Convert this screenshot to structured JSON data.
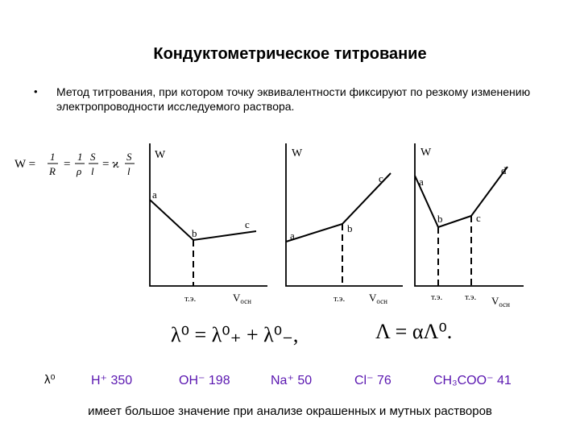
{
  "title": "Кондуктометрическое титрование",
  "bullet": "•",
  "description": "Метод титрования, при котором точку эквивалентности фиксируют по резкому изменению электропроводности исследуемого раствора.",
  "formula": {
    "lhs": "W =",
    "f1_num": "1",
    "f1_den": "R",
    "eq1": "=",
    "f2_num": "1",
    "f2_den": "ρ",
    "f3_num": "S",
    "f3_den": "l",
    "eq2": "= ϰ",
    "f4_num": "S",
    "f4_den": "l"
  },
  "graphs": [
    {
      "y_axis": "W",
      "x_axis": "V",
      "x_axis_sub": "осн",
      "eq_point": "т.э.",
      "points": [
        "a",
        "b",
        "c"
      ]
    },
    {
      "y_axis": "W",
      "x_axis": "V",
      "x_axis_sub": "осн",
      "eq_point": "т.э.",
      "points": [
        "a",
        "b",
        "c"
      ]
    },
    {
      "y_axis": "W",
      "x_axis": "V",
      "x_axis_sub": "осн",
      "eq_point_1": "т.э.",
      "eq_point_2": "т.э.",
      "points": [
        "a",
        "b",
        "c",
        "d"
      ]
    }
  ],
  "equations": {
    "kohlrausch": "λ⁰ = λ⁰₊ + λ⁰₋,",
    "lambda": "Λ = αΛ⁰."
  },
  "ions": {
    "label": "λ⁰",
    "h": "H⁺ 350",
    "oh": "OH⁻ 198",
    "na": "Na⁺ 50",
    "cl": "Cl⁻ 76",
    "acetate": "CH₃COO⁻ 41"
  },
  "footer": "имеет большое значение при анализе окрашенных и мутных растворов",
  "colors": {
    "ion_text": "#5a16b0"
  }
}
